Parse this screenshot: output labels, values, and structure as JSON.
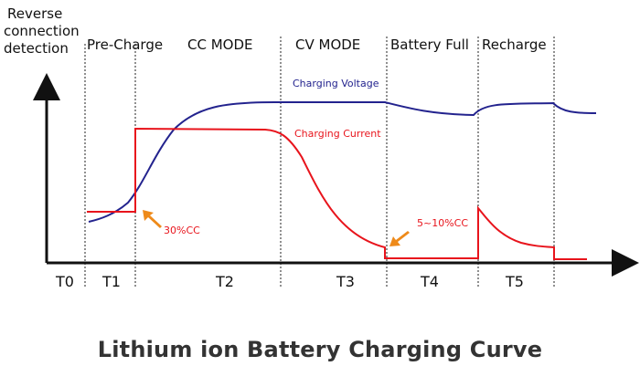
{
  "header": {
    "detection_label": [
      "Reverse",
      "connection",
      "detection"
    ]
  },
  "phases": {
    "pre_charge": "Pre-Charge",
    "cc_mode": "CC MODE",
    "cv_mode": "CV MODE",
    "battery_full": "Battery Full",
    "recharge": "Recharge"
  },
  "ticks": [
    "T0",
    "T1",
    "T2",
    "T3",
    "T4",
    "T5"
  ],
  "series": {
    "voltage": {
      "name": "Charging Voltage",
      "color": "#23238e"
    },
    "current": {
      "name": "Charging Current",
      "color": "#e8141c"
    }
  },
  "annotations": {
    "precharge_current": "30%CC",
    "termination_current": "5~10%CC",
    "arrow_color": "#ee8a1a"
  },
  "caption": "Lithium ion Battery Charging Curve"
}
